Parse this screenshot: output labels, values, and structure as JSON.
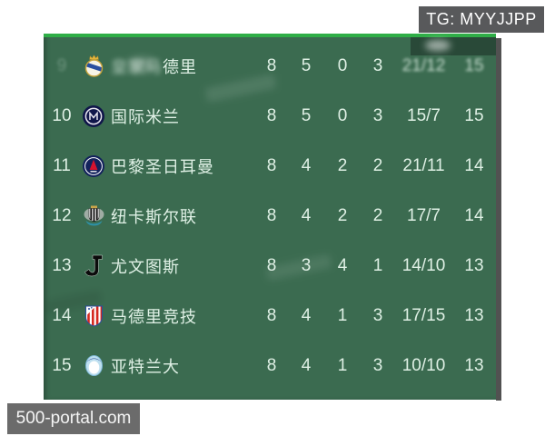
{
  "overlay": {
    "tg_badge": "TG: MYYJJPP",
    "site_badge": "500-portal.com"
  },
  "colors": {
    "table_background": "#3b6b50",
    "top_strip": "#2fae47",
    "text": "#dff0e5",
    "tg_badge_bg": "#58595b",
    "site_badge_bg": "#6b6b6b",
    "shadow": "#515151"
  },
  "table": {
    "rows": [
      {
        "rank": "9",
        "team": "皇家马德里",
        "logo": "real-madrid-logo",
        "played": "8",
        "won": "5",
        "drawn": "0",
        "lost": "3",
        "goals": "21/12",
        "points": "15",
        "obscured": true
      },
      {
        "rank": "10",
        "team": "国际米兰",
        "logo": "inter-milan-logo",
        "played": "8",
        "won": "5",
        "drawn": "0",
        "lost": "3",
        "goals": "15/7",
        "points": "15"
      },
      {
        "rank": "11",
        "team": "巴黎圣日耳曼",
        "logo": "psg-logo",
        "played": "8",
        "won": "4",
        "drawn": "2",
        "lost": "2",
        "goals": "21/11",
        "points": "14"
      },
      {
        "rank": "12",
        "team": "纽卡斯尔联",
        "logo": "newcastle-logo",
        "played": "8",
        "won": "4",
        "drawn": "2",
        "lost": "2",
        "goals": "17/7",
        "points": "14"
      },
      {
        "rank": "13",
        "team": "尤文图斯",
        "logo": "juventus-logo",
        "played": "8",
        "won": "3",
        "drawn": "4",
        "lost": "1",
        "goals": "14/10",
        "points": "13"
      },
      {
        "rank": "14",
        "team": "马德里竞技",
        "logo": "atletico-madrid-logo",
        "played": "8",
        "won": "4",
        "drawn": "1",
        "lost": "3",
        "goals": "17/15",
        "points": "13"
      },
      {
        "rank": "15",
        "team": "亚特兰大",
        "logo": "atalanta-logo",
        "played": "8",
        "won": "4",
        "drawn": "1",
        "lost": "3",
        "goals": "10/10",
        "points": "13"
      }
    ]
  }
}
